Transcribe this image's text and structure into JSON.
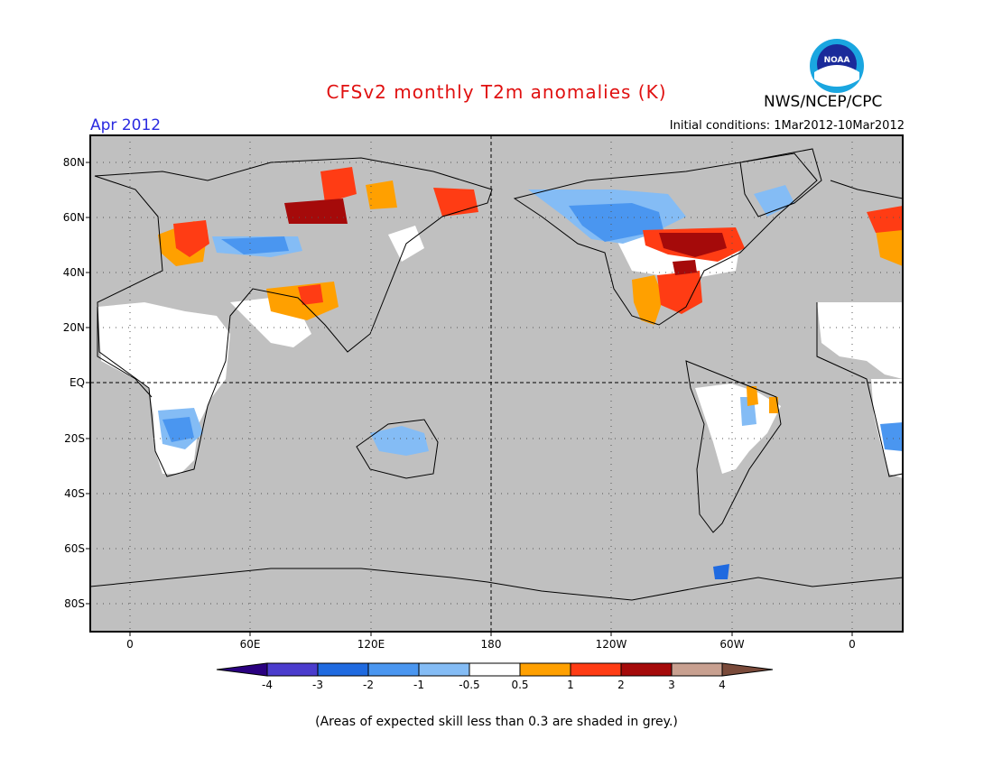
{
  "title": "CFSv2 monthly T2m anomalies (K)",
  "month": "Apr 2012",
  "agency": "NWS/NCEP/CPC",
  "logo_text": "NOAA",
  "initial_conditions": "Initial conditions: 1Mar2012-10Mar2012",
  "footnote": "(Areas of expected skill less than 0.3 are shaded in grey.)",
  "lat_labels": [
    "80N",
    "60N",
    "40N",
    "20N",
    "EQ",
    "20S",
    "40S",
    "60S",
    "80S"
  ],
  "lon_labels": [
    "0",
    "60E",
    "120E",
    "180",
    "120W",
    "60W",
    "0"
  ],
  "colorbar": {
    "labels": [
      "-4",
      "-3",
      "-2",
      "-1",
      "-0.5",
      "0.5",
      "1",
      "2",
      "3",
      "4"
    ],
    "colors": [
      "#2a0080",
      "#4b3ccd",
      "#1f6ae0",
      "#4a96f0",
      "#84bcf5",
      "#ffffff",
      "#ffa000",
      "#ff3c14",
      "#a50a0a",
      "#c8a090",
      "#7a4a3a"
    ]
  },
  "colors": {
    "land_grey": "#c0c0c0",
    "title_red": "#e01010",
    "month_blue": "#2a2ae0"
  }
}
